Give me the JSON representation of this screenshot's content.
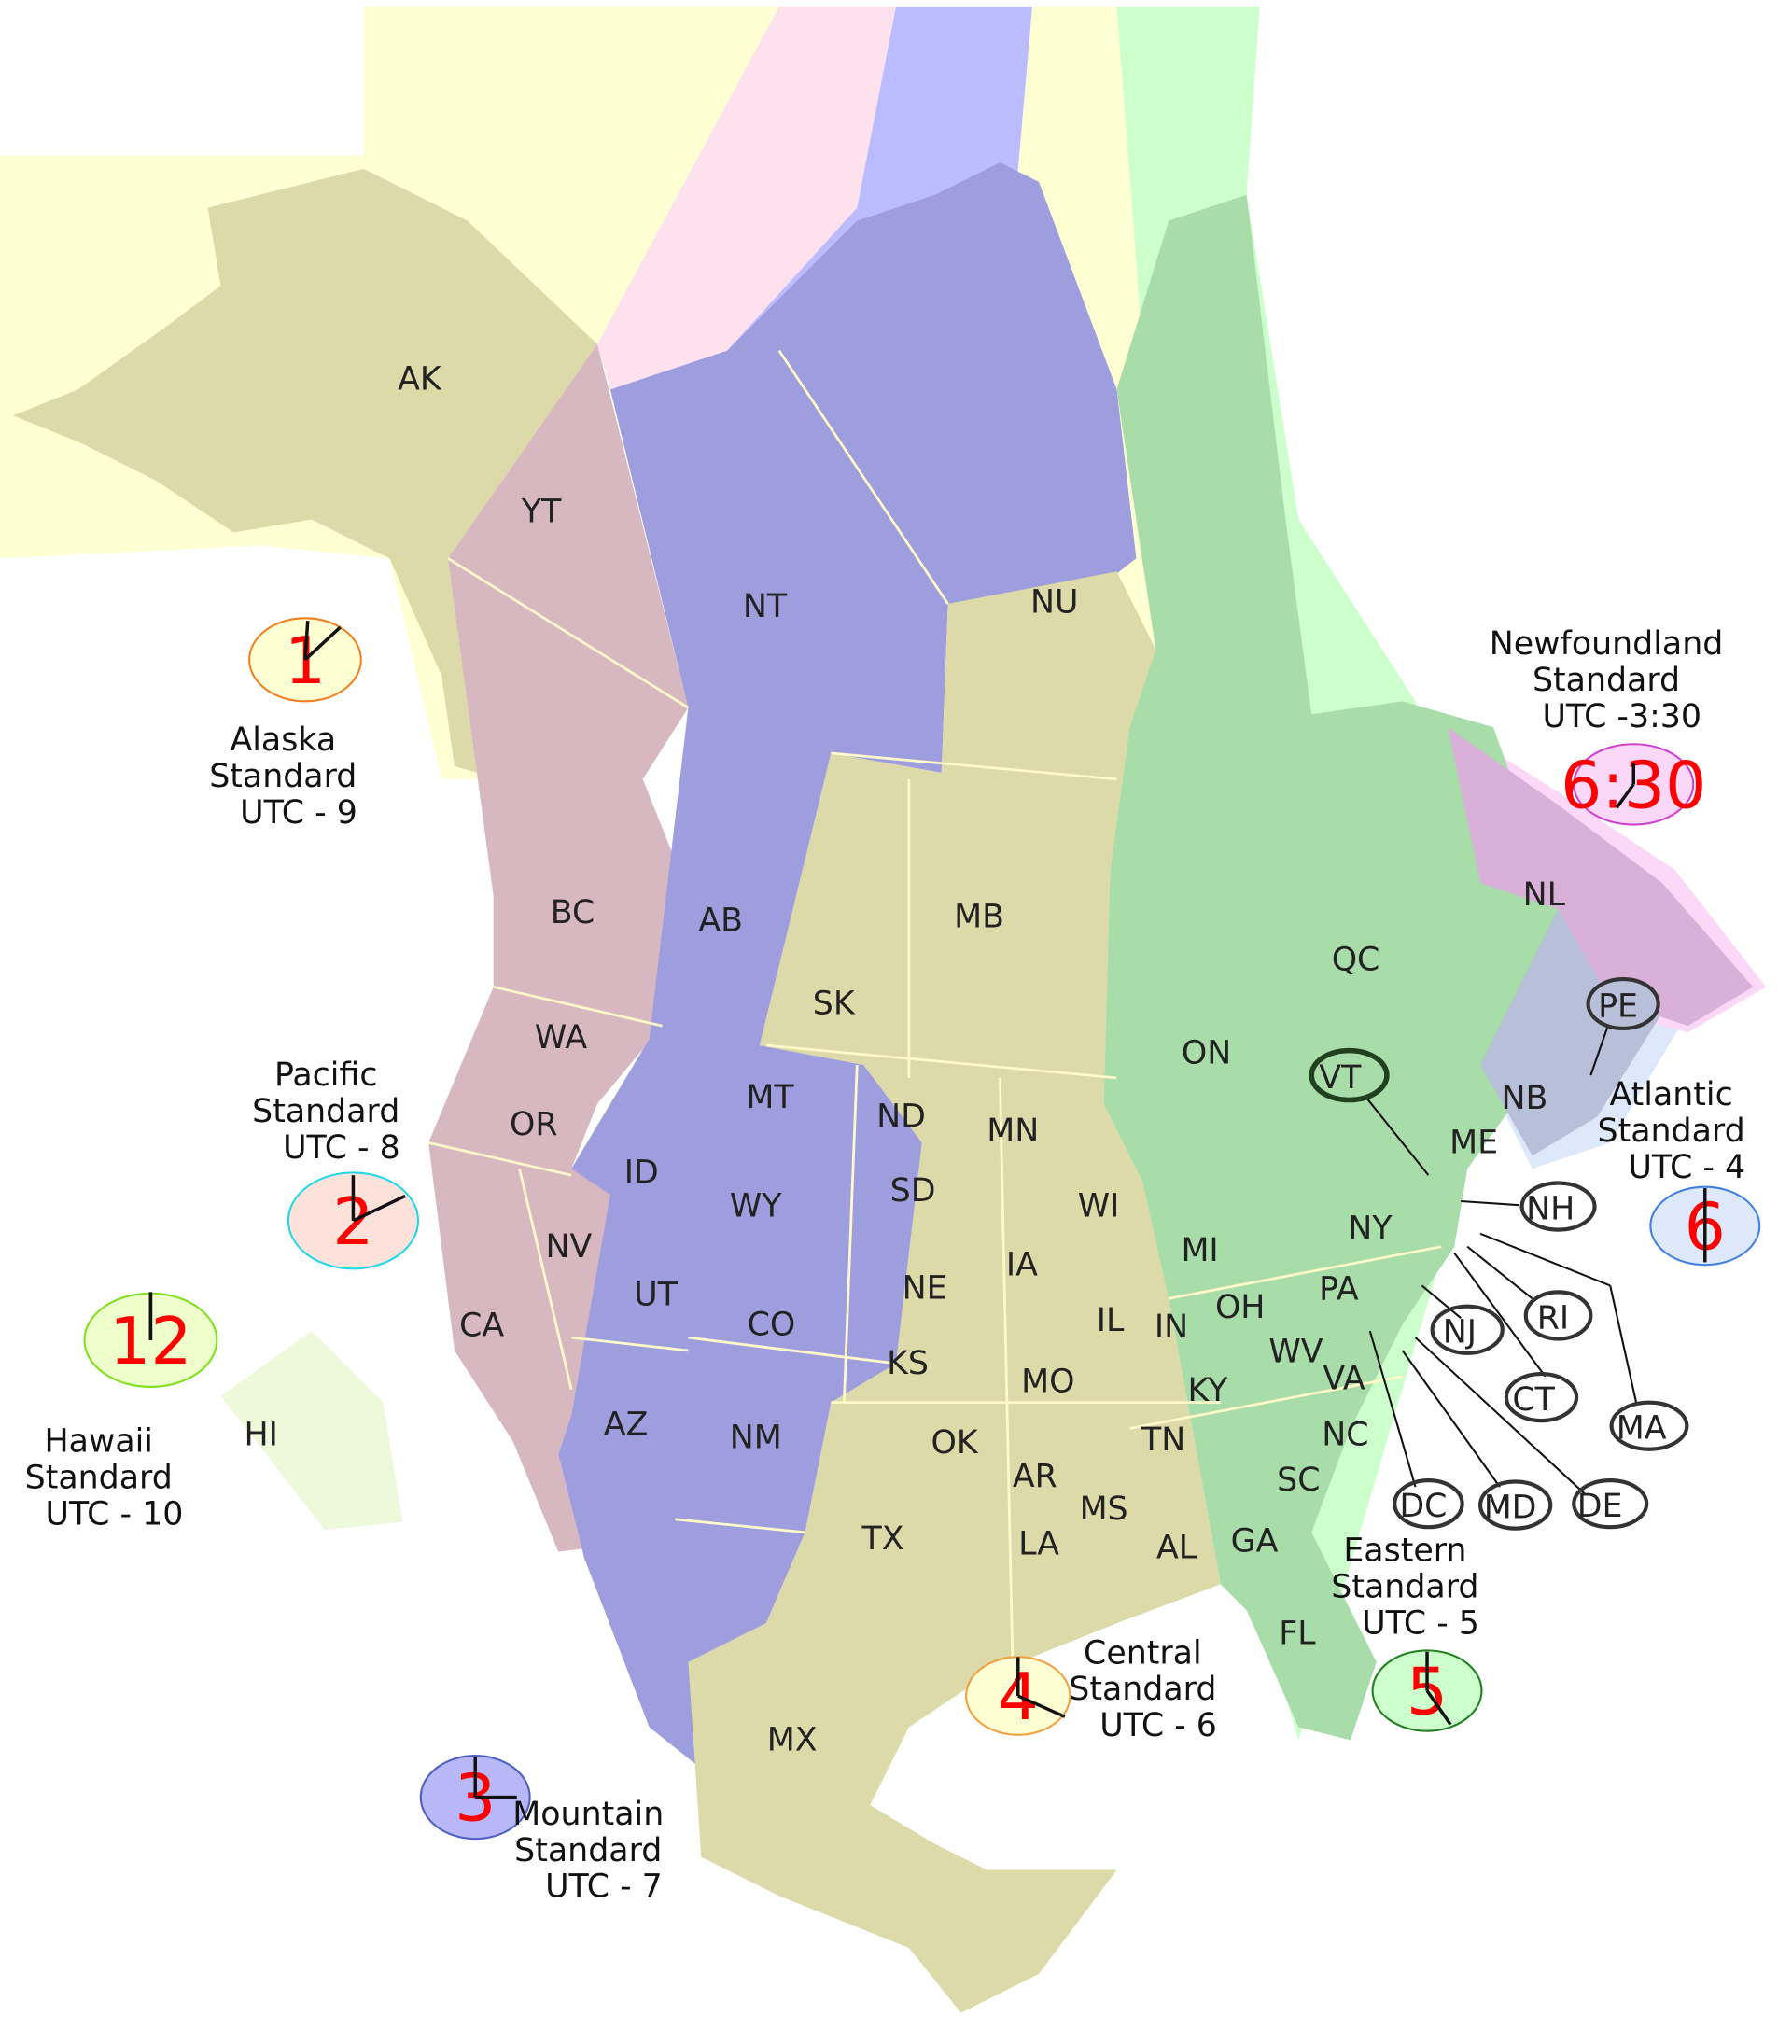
{
  "colors": {
    "alaska_bg": "#ffffd4",
    "alaska_land": "#dcdaa8",
    "pacific_bg": "#fde2ee",
    "pacific_land": "#d8b8c0",
    "mountain_bg": "#bbbbff",
    "mountain_land": "#9e9ede",
    "central_bg": "#ffffd4",
    "central_land": "#dcdaa8",
    "eastern_bg": "#ccffcc",
    "eastern_land": "#a8dca8",
    "atlantic_bg": "#dde8fb",
    "atlantic_land": "#b8bfd8",
    "newfoundland_bg": "#fbd8f8",
    "newfoundland_land": "#d8b0d8",
    "hawaii_bg": "#eef9dc",
    "clock_text": "#ff0000"
  },
  "zones": [
    {
      "id": "alaska",
      "lines": [
        "Alaska",
        "Standard",
        "UTC - 9"
      ],
      "clock": "1",
      "clock_fill": "#ffffd4",
      "clock_stroke": "#f08020"
    },
    {
      "id": "pacific",
      "lines": [
        "Pacific",
        "Standard",
        "UTC - 8"
      ],
      "clock": "2",
      "clock_fill": "#fde2dc",
      "clock_stroke": "#20d8e8"
    },
    {
      "id": "mountain",
      "lines": [
        "Mountain",
        "Standard",
        "UTC - 7"
      ],
      "clock": "3",
      "clock_fill": "#b8b8f8",
      "clock_stroke": "#5060c0"
    },
    {
      "id": "central",
      "lines": [
        "Central",
        "Standard",
        "UTC - 6"
      ],
      "clock": "4",
      "clock_fill": "#ffffd4",
      "clock_stroke": "#f0a040"
    },
    {
      "id": "eastern",
      "lines": [
        "Eastern",
        "Standard",
        "UTC - 5"
      ],
      "clock": "5",
      "clock_fill": "#ccffcc",
      "clock_stroke": "#208020"
    },
    {
      "id": "atlantic",
      "lines": [
        "Atlantic",
        "Standard",
        "UTC - 4"
      ],
      "clock": "6",
      "clock_fill": "#dde8fb",
      "clock_stroke": "#4080e0"
    },
    {
      "id": "newfoundland",
      "lines": [
        "Newfoundland",
        "Standard",
        "UTC -3:30"
      ],
      "clock": "6:30",
      "clock_fill": "#fbd8f8",
      "clock_stroke": "#d040d0"
    },
    {
      "id": "hawaii",
      "lines": [
        "Hawaii",
        "Standard",
        "UTC - 10"
      ],
      "clock": "12",
      "clock_fill": "#eeffcc",
      "clock_stroke": "#80e020"
    }
  ],
  "regions": [
    "AK",
    "YT",
    "NT",
    "NU",
    "BC",
    "AB",
    "SK",
    "MB",
    "ON",
    "QC",
    "NL",
    "NB",
    "WA",
    "OR",
    "CA",
    "NV",
    "ID",
    "MT",
    "WY",
    "UT",
    "CO",
    "AZ",
    "NM",
    "ND",
    "SD",
    "NE",
    "KS",
    "OK",
    "TX",
    "MN",
    "IA",
    "MO",
    "AR",
    "LA",
    "WI",
    "IL",
    "MS",
    "AL",
    "TN",
    "KY",
    "IN",
    "MI",
    "OH",
    "WV",
    "VA",
    "NC",
    "SC",
    "GA",
    "FL",
    "PA",
    "NY",
    "ME",
    "MX",
    "HI"
  ],
  "callouts": [
    "VT",
    "PE",
    "NH",
    "RI",
    "NJ",
    "CT",
    "MA",
    "DC",
    "MD",
    "DE"
  ]
}
